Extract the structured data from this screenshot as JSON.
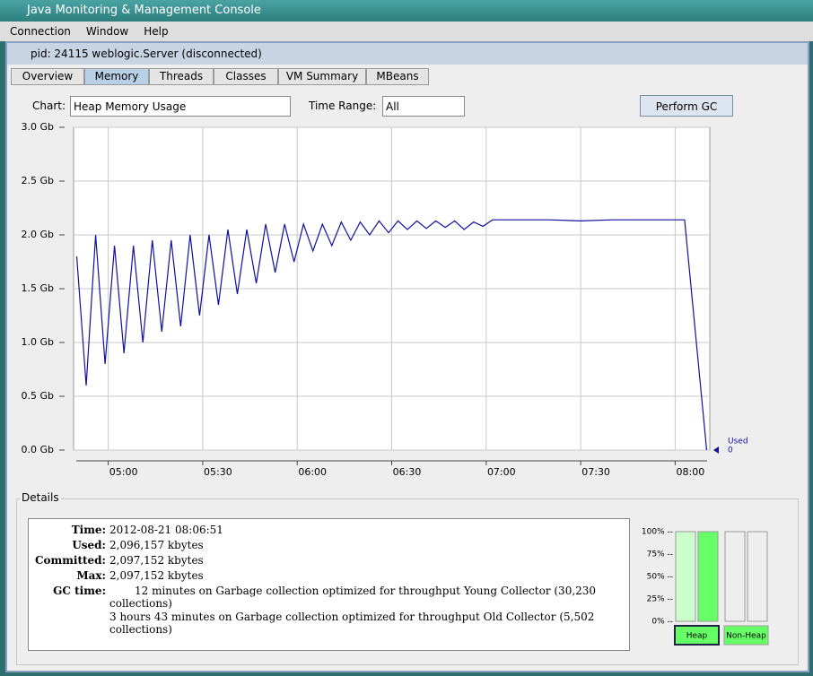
{
  "window": {
    "title": "Java Monitoring & Management Console"
  },
  "menu": [
    "Connection",
    "Window",
    "Help"
  ],
  "frame": {
    "title": "pid: 24115 weblogic.Server (disconnected)"
  },
  "tabs": {
    "items": [
      "Overview",
      "Memory",
      "Threads",
      "Classes",
      "VM Summary",
      "MBeans"
    ],
    "selected": "Memory"
  },
  "controls": {
    "chart_label": "Chart:",
    "chart_value": "Heap Memory Usage",
    "range_label": "Time Range:",
    "range_value": "All",
    "gc_button": "Perform GC"
  },
  "chart_data": {
    "type": "line",
    "x": [
      "04:50",
      "04:53",
      "04:56",
      "04:59",
      "05:02",
      "05:05",
      "05:08",
      "05:11",
      "05:14",
      "05:17",
      "05:20",
      "05:23",
      "05:26",
      "05:29",
      "05:32",
      "05:35",
      "05:38",
      "05:41",
      "05:44",
      "05:47",
      "05:50",
      "05:53",
      "05:56",
      "05:59",
      "06:02",
      "06:05",
      "06:08",
      "06:11",
      "06:14",
      "06:17",
      "06:20",
      "06:23",
      "06:26",
      "06:29",
      "06:32",
      "06:35",
      "06:38",
      "06:41",
      "06:44",
      "06:47",
      "06:50",
      "06:53",
      "06:56",
      "06:59",
      "07:02",
      "07:10",
      "07:20",
      "07:30",
      "07:40",
      "07:50",
      "08:03",
      "08:10"
    ],
    "series": [
      {
        "name": "Used",
        "color": "#1010a0",
        "latest_label": "0",
        "values": [
          1.8,
          0.6,
          2.0,
          0.8,
          1.9,
          0.9,
          1.9,
          1.0,
          1.95,
          1.1,
          1.95,
          1.15,
          2.0,
          1.25,
          2.0,
          1.35,
          2.05,
          1.45,
          2.05,
          1.55,
          2.1,
          1.65,
          2.1,
          1.75,
          2.1,
          1.85,
          2.1,
          1.9,
          2.12,
          1.95,
          2.12,
          2.0,
          2.13,
          2.02,
          2.13,
          2.05,
          2.13,
          2.06,
          2.13,
          2.07,
          2.13,
          2.05,
          2.12,
          2.08,
          2.14,
          2.14,
          2.14,
          2.13,
          2.14,
          2.14,
          2.14,
          0
        ]
      }
    ],
    "xlim": [
      "04:49",
      "08:11"
    ],
    "xticks": [
      "05:00",
      "05:30",
      "06:00",
      "06:30",
      "07:00",
      "07:30",
      "08:00"
    ],
    "ylim": [
      0,
      3
    ],
    "yticks": [
      {
        "value": 0,
        "label": "0.0 Gb"
      },
      {
        "value": 0.5,
        "label": "0.5 Gb"
      },
      {
        "value": 1,
        "label": "1.0 Gb"
      },
      {
        "value": 1.5,
        "label": "1.5 Gb"
      },
      {
        "value": 2,
        "label": "2.0 Gb"
      },
      {
        "value": 2.5,
        "label": "2.5 Gb"
      },
      {
        "value": 3,
        "label": "3.0 Gb"
      }
    ],
    "grid": true
  },
  "details": {
    "title": "Details",
    "rows": [
      [
        "Time:",
        "2012-08-21 08:06:51"
      ],
      [
        "Used:",
        "2,096,157 kbytes"
      ],
      [
        "Committed:",
        "2,097,152 kbytes"
      ],
      [
        "Max:",
        "2,097,152 kbytes"
      ],
      [
        "GC time:",
        "12 minutes on Garbage collection optimized for throughput Young Collector (30,230 collections)"
      ]
    ],
    "extra_line": "3 hours 43 minutes on Garbage collection optimized for throughput Old Collector (5,502 collections)"
  },
  "bars": {
    "type": "bar",
    "categories": [
      "Heap",
      "Non-Heap"
    ],
    "series": [
      {
        "color": "#ccffcc",
        "values": [
          100,
          0
        ]
      },
      {
        "color": "#66ff66",
        "values": [
          100,
          0
        ]
      }
    ],
    "ylim": [
      0,
      100
    ],
    "yticks": [
      {
        "value": 100,
        "label": "100% --"
      },
      {
        "value": 75,
        "label": "75% --"
      },
      {
        "value": 50,
        "label": "50% --"
      },
      {
        "value": 25,
        "label": "25% --"
      },
      {
        "value": 0,
        "label": "0% --"
      }
    ]
  }
}
